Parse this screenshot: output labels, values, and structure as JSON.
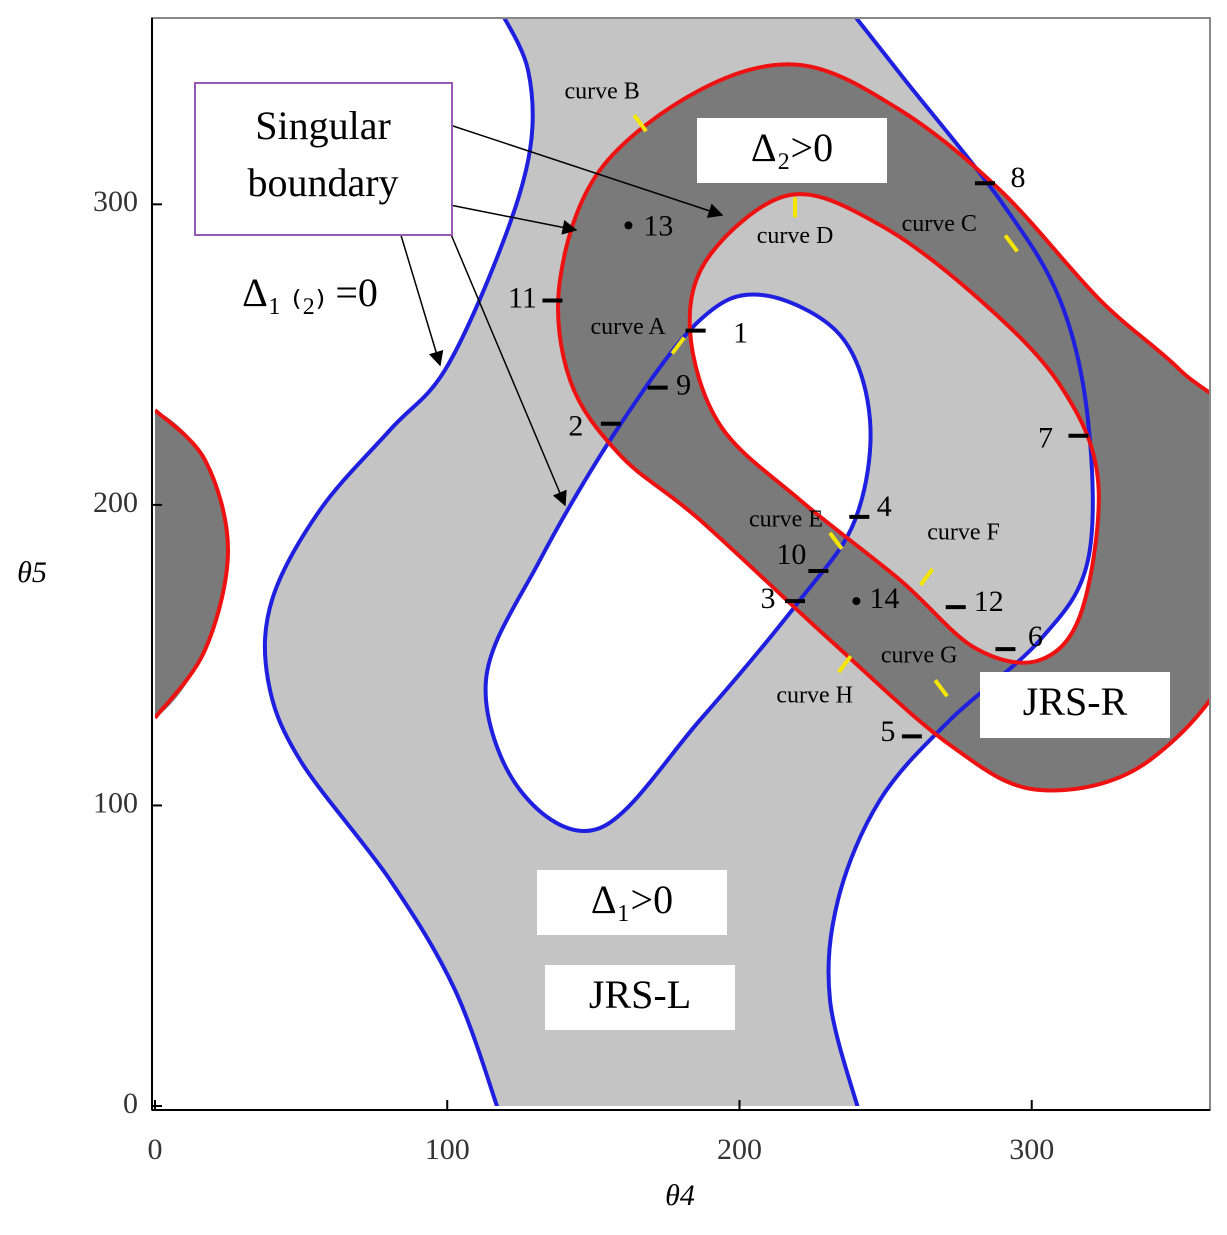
{
  "chart_data": {
    "type": "region",
    "x_label": "θ4",
    "y_label": "θ5",
    "xlim": [
      0,
      361
    ],
    "ylim": [
      0,
      362
    ],
    "xticks": [
      0,
      100,
      200,
      300
    ],
    "yticks": [
      0,
      100,
      200,
      300
    ],
    "annotations": {
      "singular_boundary": [
        "Singular",
        "boundary"
      ],
      "delta2": "Δ₂>0",
      "delta12": "Δ₁ ₍₂₎ =0",
      "delta1": "Δ₁>0",
      "jrs_l": "JRS-L",
      "jrs_r": "JRS-R"
    },
    "points": {
      "labels": [
        "1",
        "2",
        "3",
        "4",
        "5",
        "6",
        "7",
        "8",
        "9",
        "10",
        "11",
        "12",
        "13",
        "14"
      ],
      "x": [
        185,
        156,
        219,
        241,
        259,
        291,
        316,
        284,
        172,
        227,
        136,
        274,
        162,
        240
      ],
      "y": [
        258,
        227,
        168,
        196,
        123,
        152,
        223,
        307,
        239,
        178,
        268,
        166,
        293,
        168
      ],
      "marker": [
        "dash",
        "dash",
        "dash",
        "dash",
        "dash",
        "dash",
        "dash",
        "dash",
        "dash",
        "dash",
        "dash",
        "dash",
        "dot",
        "dot"
      ]
    },
    "curve_markers": {
      "labels": [
        "curve A",
        "curve B",
        "curve C",
        "curve D",
        "curve E",
        "curve F",
        "curve G",
        "curve H"
      ],
      "x": [
        179,
        166,
        293,
        219,
        233,
        264,
        269,
        236
      ],
      "y": [
        253,
        327,
        287,
        299,
        188,
        176,
        139,
        147
      ],
      "color": "#f5e600"
    },
    "colors": {
      "delta1_boundary": "#1f1fe0",
      "delta2_boundary": "#ee1111",
      "delta1_region": "#c4c4c4",
      "delta2_region": "#7a7a7a"
    }
  }
}
